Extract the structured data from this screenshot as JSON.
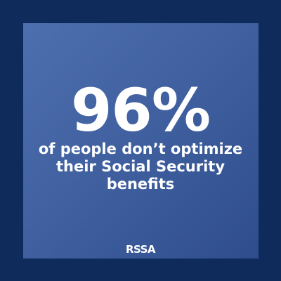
{
  "headline": "96%",
  "lines": [
    "of people don’t optimize",
    "their Social Security",
    "benefits"
  ],
  "logo": "RSSA"
}
